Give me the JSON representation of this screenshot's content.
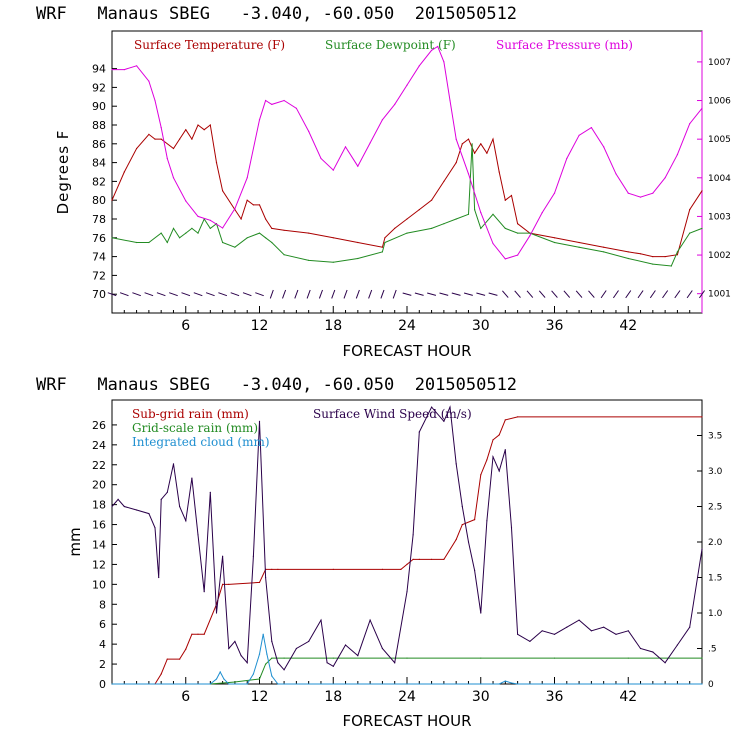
{
  "chart_data": [
    {
      "type": "line",
      "title": "WRF   Manaus SBEG   -3.040, -60.050  2015050512",
      "xlabel": "FORECAST HOUR",
      "ylabel": "Degrees F",
      "xlim": [
        0,
        48
      ],
      "ylim": [
        68,
        98
      ],
      "y2lim": [
        1000.5,
        1007.8
      ],
      "xticks": [
        "6",
        "12",
        "18",
        "24",
        "30",
        "36",
        "42"
      ],
      "yticks": [
        "70",
        "72",
        "74",
        "76",
        "78",
        "80",
        "82",
        "84",
        "86",
        "88",
        "90",
        "92",
        "94"
      ],
      "y2ticks": [
        "1001",
        "1002",
        "1003",
        "1004",
        "1005",
        "1006",
        "1007"
      ],
      "legend": [
        "Surface Temperature (F)",
        "Surface Dewpoint (F)",
        "Surface Pressure (mb)"
      ],
      "colors": {
        "temp": "#aa0000",
        "dew": "#228b22",
        "pres": "#dd00dd",
        "wind": "#2a004a"
      },
      "series": [
        {
          "name": "Surface Temperature (F)",
          "axis": "left",
          "color": "#aa0000",
          "x": [
            0,
            1,
            2,
            3,
            3.5,
            4,
            5,
            5.5,
            6,
            6.5,
            7,
            7.5,
            8,
            8.5,
            9,
            10,
            10.5,
            11,
            11.5,
            12,
            12.5,
            13,
            14,
            16,
            18,
            20,
            22,
            22.2,
            23,
            24,
            25,
            26,
            27,
            28,
            28.5,
            29,
            29.5,
            30,
            30.5,
            31,
            31.5,
            32,
            32.5,
            33,
            34,
            36,
            38,
            40,
            42,
            43,
            44,
            45,
            46,
            47,
            48
          ],
          "y": [
            80,
            83,
            85.5,
            87,
            86.5,
            86.5,
            85.5,
            86.5,
            87.5,
            86.5,
            88,
            87.5,
            88,
            84,
            81,
            79,
            78,
            80,
            79.5,
            79.5,
            78,
            77,
            76.8,
            76.5,
            76,
            75.5,
            75,
            76,
            77,
            78,
            79,
            80,
            82,
            84,
            86,
            86.5,
            85,
            86,
            85,
            86.5,
            83,
            80,
            80.5,
            77.5,
            76.5,
            76,
            75.5,
            75,
            74.5,
            74.3,
            74,
            74,
            74.2,
            79,
            81
          ]
        },
        {
          "name": "Surface Dewpoint (F)",
          "axis": "left",
          "color": "#228b22",
          "x": [
            0,
            2,
            3,
            4,
            4.5,
            5,
            5.5,
            6,
            6.5,
            7,
            7.5,
            8,
            8.5,
            9,
            10,
            11,
            12,
            12.5,
            13,
            14,
            16,
            18,
            20,
            22,
            22.2,
            24,
            26,
            27,
            28,
            29,
            29.3,
            29.5,
            30,
            31,
            32,
            33,
            34,
            36,
            38,
            40,
            42,
            44,
            45.5,
            46,
            47,
            48
          ],
          "y": [
            76,
            75.5,
            75.5,
            76.5,
            75.5,
            77,
            76,
            76.5,
            77,
            76.5,
            78,
            77,
            77.5,
            75.5,
            75,
            76,
            76.5,
            76,
            75.5,
            74.2,
            73.6,
            73.4,
            73.8,
            74.5,
            75.5,
            76.5,
            77,
            77.5,
            78,
            78.5,
            86,
            79,
            77,
            78.5,
            77,
            76.5,
            76.5,
            75.5,
            75,
            74.5,
            73.8,
            73.2,
            73,
            74.5,
            76.5,
            77
          ]
        },
        {
          "name": "Surface Pressure (mb)",
          "axis": "right",
          "color": "#dd00dd",
          "x": [
            0,
            1,
            2,
            3,
            3.5,
            4,
            4.5,
            5,
            6,
            7,
            8,
            9,
            10,
            11,
            12,
            12.5,
            13,
            14,
            15,
            16,
            17,
            18,
            19,
            20,
            21,
            22,
            23,
            24,
            25,
            26,
            26.5,
            27,
            27.5,
            28,
            29,
            30,
            31,
            32,
            33,
            34,
            35,
            36,
            37,
            38,
            39,
            40,
            41,
            42,
            43,
            44,
            45,
            46,
            47,
            48
          ],
          "y": [
            1006.8,
            1006.8,
            1006.9,
            1006.5,
            1006,
            1005.3,
            1004.5,
            1004,
            1003.4,
            1003,
            1002.9,
            1002.7,
            1003.2,
            1004,
            1005.5,
            1006,
            1005.9,
            1006,
            1005.8,
            1005.2,
            1004.5,
            1004.2,
            1004.8,
            1004.3,
            1004.9,
            1005.5,
            1005.9,
            1006.4,
            1006.9,
            1007.3,
            1007.4,
            1007,
            1006,
            1005,
            1004.1,
            1003.1,
            1002.3,
            1001.9,
            1002,
            1002.5,
            1003.1,
            1003.6,
            1004.5,
            1005.1,
            1005.3,
            1004.8,
            1004.1,
            1003.6,
            1003.5,
            1003.6,
            1004,
            1004.6,
            1005.4,
            1005.8
          ]
        }
      ],
      "wind_barbs": {
        "row_value_degF": 70,
        "count": 49
      }
    },
    {
      "type": "line",
      "title": "WRF   Manaus SBEG   -3.040, -60.050  2015050512",
      "xlabel": "FORECAST HOUR",
      "ylabel": "mm",
      "xlim": [
        0,
        48
      ],
      "ylim": [
        0,
        28.5
      ],
      "y2lim": [
        0,
        4
      ],
      "xticks": [
        "6",
        "12",
        "18",
        "24",
        "30",
        "36",
        "42"
      ],
      "yticks": [
        "0",
        "2",
        "4",
        "6",
        "8",
        "10",
        "12",
        "14",
        "16",
        "18",
        "20",
        "22",
        "24",
        "26"
      ],
      "y2ticks": [
        "0",
        ".5",
        "1.0",
        "1.5",
        "2.0",
        "2.5",
        "3.0",
        "3.5"
      ],
      "legend": [
        "Sub-grid rain (mm)",
        "Surface Wind Speed (m/s)",
        "Grid-scale rain (mm)",
        "Integrated cloud (mm)"
      ],
      "colors": {
        "subgrid": "#aa0000",
        "wind": "#2a004a",
        "gridscale": "#228b22",
        "cloud": "#1f8fd0"
      },
      "series": [
        {
          "name": "Sub-grid rain (mm)",
          "axis": "left",
          "color": "#aa0000",
          "x": [
            0,
            3.5,
            4,
            4.5,
            5.5,
            6,
            6.5,
            7,
            7.5,
            8.5,
            9,
            9.5,
            12,
            12.5,
            13,
            13.5,
            18,
            22,
            23.5,
            24,
            24.5,
            25,
            26,
            27,
            28,
            28.5,
            29.5,
            30,
            30.5,
            31,
            31.5,
            32,
            33,
            48
          ],
          "y": [
            0,
            0,
            1,
            2.5,
            2.5,
            3.5,
            5,
            5,
            5,
            8,
            10,
            10,
            10.2,
            11.5,
            11.5,
            11.5,
            11.5,
            11.5,
            11.5,
            12,
            12.5,
            12.5,
            12.5,
            12.5,
            14.5,
            16,
            16.5,
            21,
            22.5,
            24.5,
            25,
            26.5,
            26.8,
            26.8
          ]
        },
        {
          "name": "Grid-scale rain (mm)",
          "axis": "left",
          "color": "#228b22",
          "x": [
            0,
            8,
            9,
            10,
            12,
            12.5,
            13,
            14,
            18,
            24,
            30,
            36,
            42,
            48
          ],
          "y": [
            0,
            0,
            0.1,
            0.2,
            0.5,
            2,
            2.6,
            2.6,
            2.6,
            2.6,
            2.6,
            2.6,
            2.6,
            2.6
          ]
        },
        {
          "name": "Integrated cloud (mm)",
          "axis": "left",
          "color": "#1f8fd0",
          "x": [
            0,
            8,
            8.5,
            8.8,
            9.1,
            9.5,
            11,
            11.5,
            12,
            12.3,
            12.6,
            13,
            13.5,
            14,
            24,
            30,
            31.5,
            32,
            32.5,
            33,
            48
          ],
          "y": [
            0,
            0,
            0.5,
            1.2,
            0.5,
            0,
            0,
            1,
            3,
            5,
            3,
            0.8,
            0,
            0,
            0,
            0,
            0,
            0.3,
            0.1,
            0,
            0
          ]
        },
        {
          "name": "Surface Wind Speed (m/s)",
          "axis": "right",
          "color": "#2a004a",
          "x": [
            0,
            0.5,
            1,
            2,
            3,
            3.5,
            3.8,
            4,
            4.5,
            5,
            5.5,
            6,
            6.5,
            7,
            7.5,
            8,
            8.5,
            9,
            9.5,
            10,
            10.5,
            11,
            11.5,
            12,
            12.5,
            13,
            13.5,
            14,
            15,
            16,
            17,
            17.5,
            18,
            19,
            20,
            21,
            22,
            23,
            24,
            24.5,
            25,
            26,
            27,
            27.5,
            28,
            28.5,
            29,
            29.5,
            30,
            30.5,
            31,
            31.5,
            32,
            32.5,
            33,
            34,
            35,
            36,
            37,
            38,
            39,
            40,
            41,
            42,
            43,
            44,
            45,
            46,
            47,
            48
          ],
          "y": [
            2.5,
            2.6,
            2.5,
            2.45,
            2.4,
            2.2,
            1.5,
            2.6,
            2.7,
            3.1,
            2.5,
            2.3,
            2.9,
            2.1,
            1.3,
            2.7,
            1.0,
            1.8,
            0.5,
            0.6,
            0.4,
            0.3,
            1.8,
            3.7,
            1.5,
            0.6,
            0.3,
            0.2,
            0.5,
            0.6,
            0.9,
            0.3,
            0.25,
            0.55,
            0.4,
            0.9,
            0.5,
            0.3,
            1.3,
            2.1,
            3.55,
            3.9,
            3.7,
            3.9,
            3.1,
            2.5,
            2.0,
            1.6,
            1.0,
            2.3,
            3.2,
            3.0,
            3.3,
            2.2,
            0.7,
            0.6,
            0.75,
            0.7,
            0.8,
            0.9,
            0.75,
            0.8,
            0.7,
            0.75,
            0.5,
            0.45,
            0.3,
            0.55,
            0.8,
            1.9
          ]
        }
      ]
    }
  ]
}
